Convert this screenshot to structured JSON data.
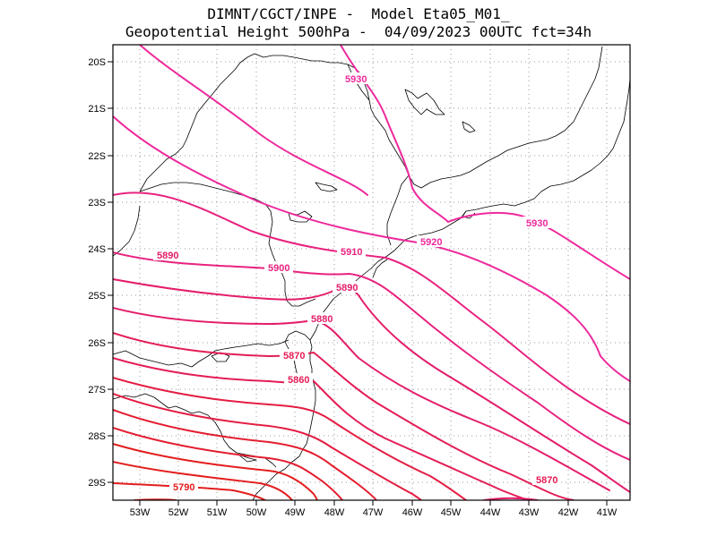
{
  "header": {
    "line1": "DIMNT/CGCT/INPE -  Model Eta05_M01_",
    "line2": "Geopotential Height 500hPa -  04/09/2023 00UTC fct=34h"
  },
  "axes": {
    "lat_labels": [
      "20S",
      "21S",
      "22S",
      "23S",
      "24S",
      "25S",
      "26S",
      "27S",
      "28S",
      "29S"
    ],
    "lon_labels": [
      "53W",
      "52W",
      "51W",
      "50W",
      "49W",
      "48W",
      "47W",
      "46W",
      "45W",
      "44W",
      "43W",
      "42W",
      "41W"
    ]
  },
  "contour_labels": [
    {
      "text": "5930",
      "color": "#ee2a9c"
    },
    {
      "text": "5930",
      "color": "#ee2a9c"
    },
    {
      "text": "5920",
      "color": "#ee2a9c"
    },
    {
      "text": "5910",
      "color": "#e8227f"
    },
    {
      "text": "5900",
      "color": "#e8227f"
    },
    {
      "text": "5890",
      "color": "#e41d6a"
    },
    {
      "text": "5890",
      "color": "#e41d6a"
    },
    {
      "text": "5880",
      "color": "#e41d6a"
    },
    {
      "text": "5870",
      "color": "#e41d56"
    },
    {
      "text": "5870",
      "color": "#e41d56"
    },
    {
      "text": "5860",
      "color": "#e41d56"
    },
    {
      "text": "5790",
      "color": "#e41d1d"
    }
  ],
  "colors": {
    "frame": "#000000",
    "grid": "#9a9a9a",
    "coast": "#000000"
  }
}
